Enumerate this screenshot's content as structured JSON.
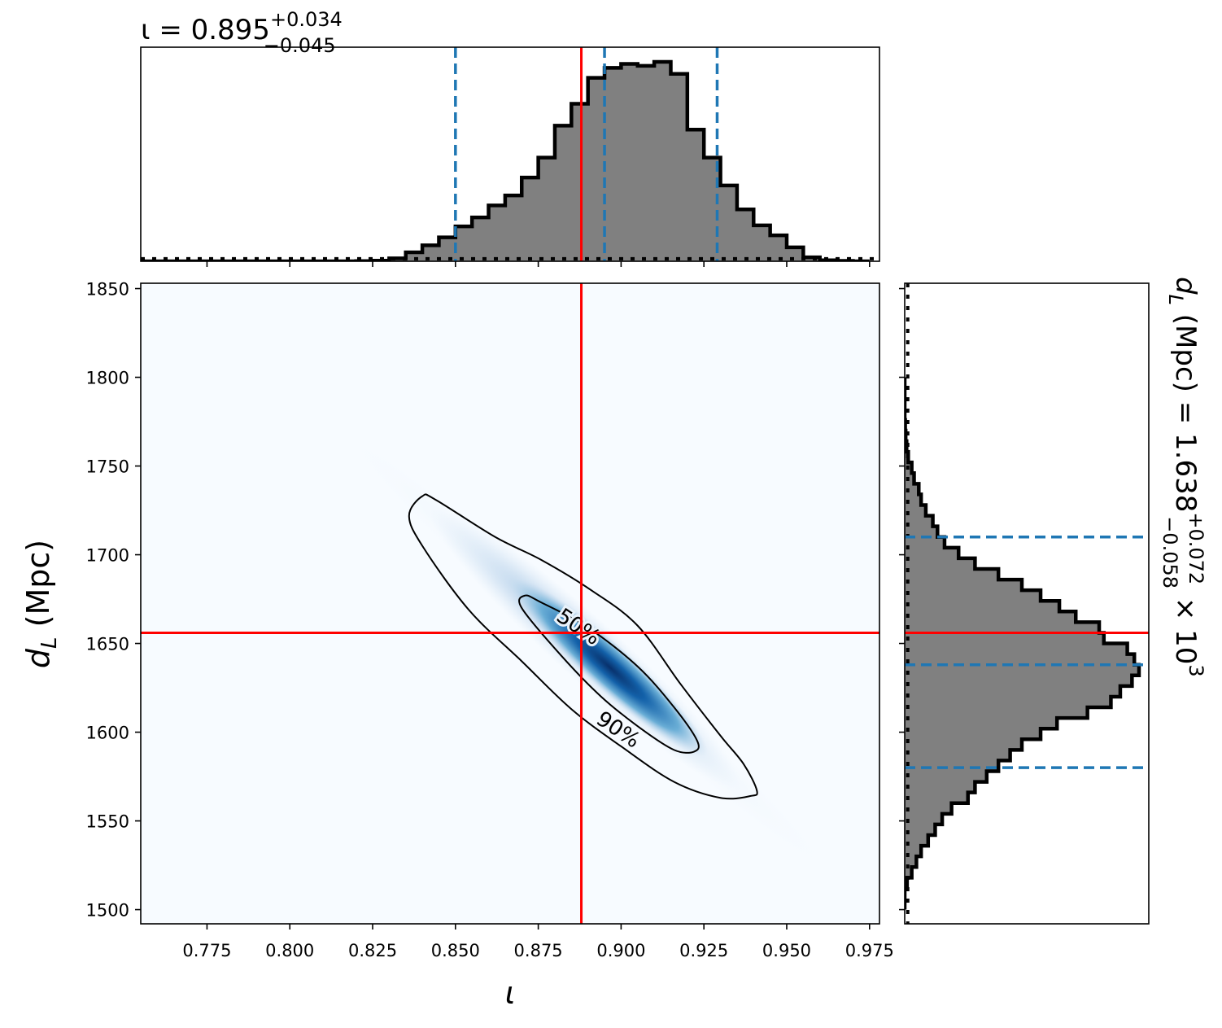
{
  "chart_data": {
    "type": "corner",
    "parameters": [
      "iota",
      "d_L"
    ],
    "top_histogram": {
      "type": "histogram",
      "title_main": "ι = 0.895",
      "title_sup": "+0.034",
      "title_sub": "−0.045",
      "median": 0.895,
      "interval": [
        0.85,
        0.929
      ],
      "true_value": 0.888,
      "xlim": [
        0.755,
        0.978
      ],
      "bin_edges": [
        0.755,
        0.76,
        0.765,
        0.77,
        0.775,
        0.78,
        0.785,
        0.79,
        0.795,
        0.8,
        0.805,
        0.81,
        0.815,
        0.82,
        0.825,
        0.83,
        0.835,
        0.84,
        0.845,
        0.85,
        0.855,
        0.86,
        0.865,
        0.87,
        0.875,
        0.88,
        0.885,
        0.89,
        0.895,
        0.9,
        0.905,
        0.91,
        0.915,
        0.92,
        0.925,
        0.93,
        0.935,
        0.94,
        0.945,
        0.95,
        0.955,
        0.96,
        0.965,
        0.97,
        0.975
      ],
      "counts": [
        0,
        0,
        0,
        0,
        0,
        0,
        0,
        0,
        0,
        0,
        0,
        0,
        0,
        0.001,
        0.003,
        0.015,
        0.045,
        0.08,
        0.12,
        0.175,
        0.22,
        0.28,
        0.33,
        0.42,
        0.52,
        0.68,
        0.79,
        0.92,
        0.97,
        0.99,
        0.98,
        1.0,
        0.94,
        0.66,
        0.52,
        0.38,
        0.26,
        0.18,
        0.13,
        0.07,
        0.02,
        0.005,
        0.002,
        0
      ],
      "prior_level": 0.013
    },
    "joint": {
      "type": "2d-density",
      "xlabel": "ι",
      "ylabel": "d_L (Mpc)",
      "xlim": [
        0.755,
        0.978
      ],
      "ylim": [
        1492,
        1853
      ],
      "xticks": [
        "0.775",
        "0.800",
        "0.825",
        "0.850",
        "0.875",
        "0.900",
        "0.925",
        "0.950",
        "0.975"
      ],
      "yticks": [
        "1500",
        "1550",
        "1600",
        "1650",
        "1700",
        "1750",
        "1800",
        "1850"
      ],
      "colormap": "Blues",
      "peak": {
        "x": 0.904,
        "y": 1625
      },
      "contour_labels": [
        "50%",
        "90%"
      ],
      "contour_90": [
        [
          0.84,
          1733
        ],
        [
          0.844,
          1731
        ],
        [
          0.862,
          1710
        ],
        [
          0.876,
          1697
        ],
        [
          0.891,
          1680
        ],
        [
          0.905,
          1660
        ],
        [
          0.918,
          1627
        ],
        [
          0.93,
          1598
        ],
        [
          0.937,
          1582
        ],
        [
          0.941,
          1567
        ],
        [
          0.939,
          1564
        ],
        [
          0.93,
          1563
        ],
        [
          0.916,
          1572
        ],
        [
          0.9,
          1592
        ],
        [
          0.885,
          1613
        ],
        [
          0.87,
          1640
        ],
        [
          0.854,
          1669
        ],
        [
          0.84,
          1705
        ],
        [
          0.836,
          1722
        ]
      ],
      "contour_50": [
        [
          0.871,
          1677
        ],
        [
          0.876,
          1673
        ],
        [
          0.89,
          1659
        ],
        [
          0.905,
          1637
        ],
        [
          0.916,
          1614
        ],
        [
          0.923,
          1595
        ],
        [
          0.922,
          1589
        ],
        [
          0.916,
          1590
        ],
        [
          0.906,
          1602
        ],
        [
          0.894,
          1620
        ],
        [
          0.882,
          1643
        ],
        [
          0.87,
          1670
        ]
      ],
      "true_x": 0.888,
      "true_y": 1656
    },
    "right_histogram": {
      "type": "histogram",
      "orientation": "horizontal",
      "title_main": "d",
      "title_sub_main": "L",
      "title_rest": " (Mpc) = 1.638",
      "title_sup": "+0.072",
      "title_sub": "−0.058",
      "title_tail": " × 10",
      "title_exp": "3",
      "median": 1638,
      "interval": [
        1580,
        1710
      ],
      "true_value": 1656,
      "ylim": [
        1492,
        1853
      ],
      "bin_edges": [
        1500,
        1506,
        1512,
        1518,
        1524,
        1530,
        1536,
        1542,
        1548,
        1554,
        1560,
        1566,
        1572,
        1578,
        1584,
        1590,
        1596,
        1602,
        1608,
        1614,
        1620,
        1626,
        1632,
        1638,
        1644,
        1650,
        1656,
        1662,
        1668,
        1674,
        1680,
        1686,
        1692,
        1698,
        1704,
        1710,
        1716,
        1722,
        1728,
        1734,
        1740,
        1746,
        1752,
        1758,
        1764,
        1770,
        1776,
        1782,
        1788,
        1794,
        1800
      ],
      "counts": [
        0,
        0,
        0.01,
        0.03,
        0.05,
        0.07,
        0.1,
        0.13,
        0.16,
        0.2,
        0.27,
        0.3,
        0.35,
        0.4,
        0.45,
        0.5,
        0.58,
        0.65,
        0.78,
        0.88,
        0.92,
        0.97,
        1.0,
        0.98,
        0.95,
        0.85,
        0.83,
        0.73,
        0.66,
        0.58,
        0.5,
        0.4,
        0.3,
        0.23,
        0.17,
        0.14,
        0.12,
        0.09,
        0.07,
        0.06,
        0.04,
        0.03,
        0.015,
        0.008,
        0.004,
        0.002,
        0,
        0,
        0,
        0
      ],
      "prior_level": 0.013
    }
  },
  "colors": {
    "hist_fill": "#808080",
    "hist_edge": "#000000",
    "interval_line": "#1f77b4",
    "truth_line": "#ff0000"
  }
}
